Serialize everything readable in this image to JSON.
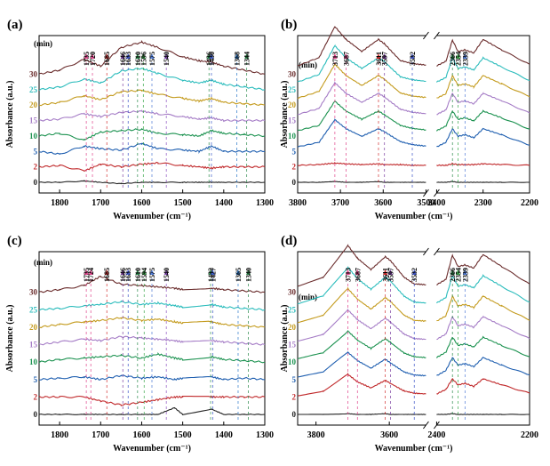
{
  "colors": {
    "0": "#222222",
    "2": "#c0282a",
    "5": "#1f5fb0",
    "10": "#1c9250",
    "15": "#a57cc6",
    "20": "#c49b1e",
    "25": "#2bbcbc",
    "30": "#6a2c2c",
    "peak_arrows": [
      "#e0428a",
      "#e0428a",
      "#d33030",
      "#7b3fa0",
      "#3a52c6",
      "#2c8a4c",
      "#3aa84a",
      "#4f7bd6",
      "#8b4fc0",
      "#2f8f4f",
      "#3d5cc8",
      "#2a77c9",
      "#2c8a4c",
      "#3d5cc8"
    ]
  },
  "chart_data": [
    {
      "panel": "(a)",
      "type": "line",
      "xlabel": "Wavenumber (cm⁻¹)",
      "ylabel": "Absorbance (a.u.)",
      "unit_label": "(min)",
      "xlim": [
        1850,
        1300
      ],
      "xticks": [
        "1800",
        "1700",
        "1600",
        "1500",
        "1400",
        "1300"
      ],
      "xtick_values": [
        1800,
        1700,
        1600,
        1500,
        1400,
        1300
      ],
      "series": [
        {
          "name": "0",
          "label": "0",
          "y": [
            0.0,
            0.0,
            0.01,
            0.0,
            -0.01,
            0.0,
            0.0,
            0.0,
            0.0,
            0.0,
            0.0,
            0.0,
            0.0
          ]
        },
        {
          "name": "2",
          "label": "2",
          "y": [
            0.0,
            0.01,
            -0.03,
            0.02,
            0.0,
            0.02,
            0.03,
            0.01,
            0.0,
            -0.01,
            0.0,
            0.0,
            0.0
          ]
        },
        {
          "name": "5",
          "label": "5",
          "y": [
            0.0,
            -0.02,
            0.04,
            0.02,
            0.01,
            0.06,
            0.02,
            0.01,
            0.0,
            0.04,
            0.0,
            0.0,
            0.0
          ]
        },
        {
          "name": "10",
          "label": "10",
          "y": [
            0.0,
            0.02,
            -0.03,
            0.03,
            0.04,
            0.05,
            0.02,
            0.01,
            0.0,
            0.04,
            0.02,
            0.01,
            0.0
          ]
        },
        {
          "name": "15",
          "label": "15",
          "y": [
            0.0,
            0.01,
            0.05,
            0.03,
            0.06,
            0.07,
            0.05,
            0.03,
            0.01,
            0.02,
            0.0,
            0.0,
            0.0
          ]
        },
        {
          "name": "20",
          "label": "20",
          "y": [
            0.0,
            0.02,
            0.07,
            0.04,
            0.1,
            0.11,
            0.08,
            0.05,
            0.03,
            0.05,
            0.02,
            0.01,
            0.0
          ]
        },
        {
          "name": "25",
          "label": "25",
          "y": [
            0.0,
            0.02,
            0.08,
            0.05,
            0.14,
            0.16,
            0.12,
            0.07,
            0.05,
            0.07,
            0.04,
            0.02,
            0.0
          ]
        },
        {
          "name": "30",
          "label": "30",
          "y": [
            0.0,
            0.03,
            0.11,
            0.06,
            0.2,
            0.24,
            0.2,
            0.13,
            0.1,
            0.09,
            0.06,
            0.03,
            0.0
          ]
        }
      ],
      "x": [
        1850,
        1800,
        1740,
        1700,
        1650,
        1600,
        1560,
        1500,
        1460,
        1430,
        1400,
        1350,
        1300
      ],
      "peaks": [
        "1735",
        "1720",
        "1685",
        "1646",
        "1633",
        "1610",
        "1596",
        "1575",
        "1540",
        "1436",
        "1430",
        "1368",
        "1344"
      ],
      "peak_values": [
        1735,
        1720,
        1685,
        1646,
        1633,
        1610,
        1596,
        1575,
        1540,
        1436,
        1430,
        1368,
        1344
      ]
    },
    {
      "panel": "(b)",
      "type": "line",
      "xlabel": "Wavenumber (cm⁻¹)",
      "ylabel": "Absorbance (a.u.)",
      "unit_label": "(min)",
      "broken_axis": true,
      "segments": [
        [
          3800,
          3500
        ],
        [
          2400,
          2200
        ]
      ],
      "xticks": [
        "3800",
        "3700",
        "3600",
        "3500",
        "2400",
        "2300",
        "2200"
      ],
      "xtick_values": [
        3800,
        3700,
        3600,
        3500,
        2400,
        2300,
        2200
      ],
      "x": [
        3800,
        3750,
        3713,
        3687,
        3650,
        3611,
        3597,
        3560,
        3532,
        3500,
        2400,
        2380,
        2366,
        2354,
        2339,
        2320,
        2300,
        2260,
        2200
      ],
      "series": [
        {
          "name": "0",
          "label": "0",
          "y": [
            0,
            0,
            0.01,
            0.0,
            0,
            0.01,
            0,
            0,
            0,
            0,
            0,
            0,
            0.01,
            0,
            0,
            0,
            0,
            0,
            0
          ]
        },
        {
          "name": "2",
          "label": "2",
          "y": [
            0.02,
            0.03,
            0.05,
            0.04,
            0.03,
            0.04,
            0.03,
            0.03,
            0.02,
            0.02,
            0.02,
            0.02,
            0.04,
            0.03,
            0.03,
            0.03,
            0.04,
            0.03,
            0.02
          ]
        },
        {
          "name": "5",
          "label": "5",
          "y": [
            0.06,
            0.12,
            0.42,
            0.3,
            0.2,
            0.3,
            0.26,
            0.13,
            0.09,
            0.07,
            0.06,
            0.12,
            0.3,
            0.2,
            0.22,
            0.18,
            0.3,
            0.22,
            0.08
          ]
        },
        {
          "name": "10",
          "label": "10",
          "y": [
            0.07,
            0.14,
            0.46,
            0.33,
            0.22,
            0.33,
            0.28,
            0.14,
            0.1,
            0.08,
            0.07,
            0.13,
            0.33,
            0.22,
            0.24,
            0.2,
            0.33,
            0.24,
            0.09
          ]
        },
        {
          "name": "15",
          "label": "15",
          "y": [
            0.08,
            0.16,
            0.5,
            0.36,
            0.24,
            0.36,
            0.31,
            0.15,
            0.11,
            0.09,
            0.08,
            0.14,
            0.36,
            0.24,
            0.26,
            0.22,
            0.36,
            0.26,
            0.1
          ]
        },
        {
          "name": "20",
          "label": "20",
          "y": [
            0.09,
            0.18,
            0.54,
            0.39,
            0.26,
            0.39,
            0.34,
            0.16,
            0.12,
            0.1,
            0.09,
            0.15,
            0.39,
            0.26,
            0.28,
            0.24,
            0.39,
            0.28,
            0.11
          ]
        },
        {
          "name": "25",
          "label": "25",
          "y": [
            0.1,
            0.2,
            0.58,
            0.42,
            0.28,
            0.42,
            0.37,
            0.17,
            0.13,
            0.11,
            0.1,
            0.16,
            0.42,
            0.28,
            0.3,
            0.26,
            0.42,
            0.3,
            0.12
          ]
        },
        {
          "name": "30",
          "label": "30",
          "y": [
            0.11,
            0.22,
            0.63,
            0.46,
            0.3,
            0.46,
            0.4,
            0.18,
            0.14,
            0.12,
            0.11,
            0.17,
            0.45,
            0.3,
            0.32,
            0.28,
            0.46,
            0.32,
            0.13
          ]
        }
      ],
      "peaks": [
        "3713",
        "3687",
        "3611",
        "3597",
        "3532",
        "2366",
        "2354",
        "2339"
      ],
      "peak_values": [
        3713,
        3687,
        3611,
        3597,
        3532,
        2366,
        2354,
        2339
      ]
    },
    {
      "panel": "(c)",
      "type": "line",
      "xlabel": "Wavenumber (cm⁻¹)",
      "ylabel": "Absorbance (a.u.)",
      "unit_label": "(min)",
      "xlim": [
        1850,
        1300
      ],
      "xticks": [
        "1800",
        "1700",
        "1600",
        "1500",
        "1400",
        "1300"
      ],
      "xtick_values": [
        1800,
        1700,
        1600,
        1500,
        1400,
        1300
      ],
      "x": [
        1850,
        1800,
        1740,
        1700,
        1650,
        1600,
        1560,
        1520,
        1500,
        1430,
        1400,
        1350,
        1300
      ],
      "series": [
        {
          "name": "0",
          "label": "0",
          "y": [
            0,
            0,
            0,
            0,
            0,
            0,
            0,
            0.05,
            0,
            0.04,
            0,
            0,
            0
          ]
        },
        {
          "name": "2",
          "label": "2",
          "y": [
            0,
            0,
            0,
            -0.03,
            -0.06,
            -0.04,
            -0.02,
            0,
            0,
            0,
            0,
            0,
            0
          ]
        },
        {
          "name": "5",
          "label": "5",
          "y": [
            0,
            0.01,
            0.02,
            0.0,
            0.03,
            0.01,
            0.02,
            0.0,
            0.01,
            0.02,
            0.0,
            0.01,
            0
          ]
        },
        {
          "name": "10",
          "label": "10",
          "y": [
            0,
            0.02,
            0.03,
            0.04,
            0.05,
            0.03,
            0.06,
            0.03,
            0.02,
            0.04,
            0.02,
            0.01,
            0
          ]
        },
        {
          "name": "15",
          "label": "15",
          "y": [
            0,
            0.02,
            0.04,
            0.03,
            0.06,
            0.05,
            0.04,
            0.03,
            0.02,
            0.03,
            0.02,
            0.01,
            0
          ]
        },
        {
          "name": "20",
          "label": "20",
          "y": [
            0,
            0.02,
            0.04,
            0.05,
            0.07,
            0.05,
            0.06,
            0.04,
            0.03,
            0.04,
            0.02,
            0.01,
            0
          ]
        },
        {
          "name": "25",
          "label": "25",
          "y": [
            0,
            0.01,
            0.03,
            0.04,
            0.06,
            0.04,
            0.05,
            0.03,
            0.02,
            0.04,
            0.02,
            0.01,
            0
          ]
        },
        {
          "name": "30",
          "label": "30",
          "y": [
            0,
            0.02,
            0.05,
            0.12,
            0.06,
            0.05,
            0.04,
            0.03,
            0.02,
            0.03,
            0.02,
            0.01,
            0
          ]
        }
      ],
      "peaks": [
        "1735",
        "1724",
        "1685",
        "1646",
        "1633",
        "1610",
        "1594",
        "1575",
        "1540",
        "1432",
        "1427",
        "1365",
        "1340"
      ],
      "peak_values": [
        1735,
        1724,
        1685,
        1646,
        1633,
        1610,
        1594,
        1575,
        1540,
        1432,
        1427,
        1365,
        1340
      ]
    },
    {
      "panel": "(d)",
      "type": "line",
      "xlabel": "Wavenumber (cm⁻¹)",
      "ylabel": "Absorbance (a.u.)",
      "unit_label": "(min)",
      "broken_axis": true,
      "segments": [
        [
          3850,
          3500
        ],
        [
          2400,
          2200
        ]
      ],
      "xticks": [
        "3800",
        "3600",
        "2400",
        "2200"
      ],
      "xtick_values": [
        3800,
        3600,
        2400,
        2200
      ],
      "x": [
        3850,
        3780,
        3713,
        3687,
        3650,
        3611,
        3597,
        3560,
        3532,
        3500,
        2400,
        2380,
        2366,
        2354,
        2339,
        2320,
        2300,
        2260,
        2200
      ],
      "series": [
        {
          "name": "0",
          "label": "0",
          "y": [
            0,
            0,
            0.01,
            0,
            0,
            0.01,
            0,
            0,
            0,
            0,
            0,
            0,
            0.01,
            0,
            0,
            0,
            0,
            0,
            0
          ]
        },
        {
          "name": "2",
          "label": "2",
          "y": [
            0.02,
            0.08,
            0.3,
            0.2,
            0.12,
            0.22,
            0.18,
            0.08,
            0.05,
            0.04,
            0.04,
            0.1,
            0.24,
            0.16,
            0.18,
            0.14,
            0.24,
            0.16,
            0.05
          ]
        },
        {
          "name": "5",
          "label": "5",
          "y": [
            0.03,
            0.1,
            0.36,
            0.25,
            0.15,
            0.27,
            0.22,
            0.1,
            0.06,
            0.05,
            0.05,
            0.12,
            0.29,
            0.19,
            0.21,
            0.17,
            0.29,
            0.19,
            0.06
          ]
        },
        {
          "name": "10",
          "label": "10",
          "y": [
            0.04,
            0.12,
            0.41,
            0.29,
            0.18,
            0.31,
            0.26,
            0.12,
            0.07,
            0.06,
            0.06,
            0.13,
            0.33,
            0.22,
            0.24,
            0.2,
            0.33,
            0.22,
            0.07
          ]
        },
        {
          "name": "15",
          "label": "15",
          "y": [
            0.05,
            0.14,
            0.46,
            0.33,
            0.21,
            0.35,
            0.3,
            0.14,
            0.08,
            0.07,
            0.07,
            0.14,
            0.37,
            0.25,
            0.27,
            0.23,
            0.37,
            0.25,
            0.08
          ]
        },
        {
          "name": "20",
          "label": "20",
          "y": [
            0.06,
            0.16,
            0.51,
            0.37,
            0.24,
            0.39,
            0.34,
            0.16,
            0.09,
            0.08,
            0.08,
            0.15,
            0.41,
            0.28,
            0.3,
            0.26,
            0.41,
            0.28,
            0.09
          ]
        },
        {
          "name": "25",
          "label": "25",
          "y": [
            0.07,
            0.18,
            0.56,
            0.41,
            0.27,
            0.43,
            0.38,
            0.18,
            0.1,
            0.09,
            0.09,
            0.16,
            0.45,
            0.31,
            0.33,
            0.29,
            0.45,
            0.31,
            0.1
          ]
        },
        {
          "name": "30",
          "label": "30",
          "y": [
            0.08,
            0.2,
            0.62,
            0.45,
            0.3,
            0.47,
            0.42,
            0.2,
            0.11,
            0.1,
            0.1,
            0.17,
            0.49,
            0.34,
            0.36,
            0.32,
            0.5,
            0.34,
            0.11
          ]
        }
      ],
      "peaks": [
        "3713",
        "3687",
        "3611",
        "3597",
        "3532",
        "2366",
        "2354",
        "2339"
      ],
      "peak_values": [
        3713,
        3687,
        3611,
        3597,
        3532,
        2366,
        2354,
        2339
      ]
    }
  ]
}
